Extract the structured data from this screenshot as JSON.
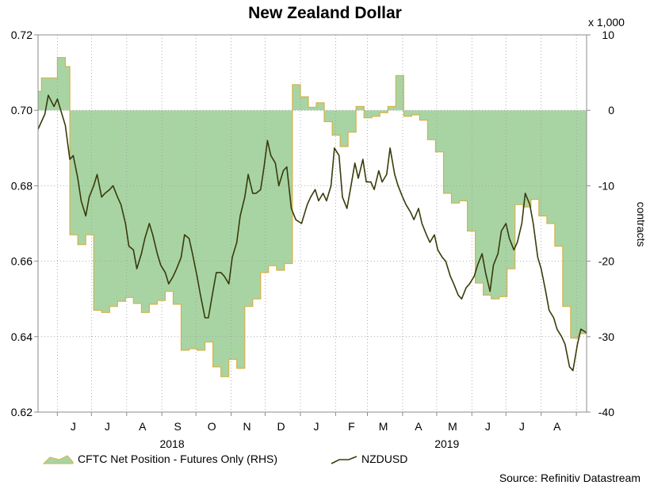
{
  "chart_data": {
    "type": "line",
    "title": "New Zealand Dollar",
    "source": "Source: Refinitiv Datastream",
    "right_axis_multiplier": "x 1,000",
    "right_axis_label": "contracts",
    "left_axis": {
      "ylim": [
        0.62,
        0.72
      ],
      "ticks": [
        "0.72",
        "0.70",
        "0.68",
        "0.66",
        "0.64",
        "0.62"
      ]
    },
    "right_axis": {
      "ylim": [
        -40,
        10
      ],
      "ticks": [
        "10",
        "0",
        "-10",
        "-20",
        "-30",
        "-40"
      ]
    },
    "x_range": [
      "2018-05-15",
      "2019-09-10"
    ],
    "month_labels": [
      {
        "label": "J",
        "date": "2018-06-15"
      },
      {
        "label": "J",
        "date": "2018-07-15"
      },
      {
        "label": "A",
        "date": "2018-08-15"
      },
      {
        "label": "S",
        "date": "2018-09-15"
      },
      {
        "label": "O",
        "date": "2018-10-15"
      },
      {
        "label": "N",
        "date": "2018-11-15"
      },
      {
        "label": "D",
        "date": "2018-12-15"
      },
      {
        "label": "J",
        "date": "2019-01-15"
      },
      {
        "label": "F",
        "date": "2019-02-15"
      },
      {
        "label": "M",
        "date": "2019-03-15"
      },
      {
        "label": "A",
        "date": "2019-04-15"
      },
      {
        "label": "M",
        "date": "2019-05-15"
      },
      {
        "label": "J",
        "date": "2019-06-15"
      },
      {
        "label": "J",
        "date": "2019-07-15"
      },
      {
        "label": "A",
        "date": "2019-08-15"
      }
    ],
    "year_labels": [
      {
        "label": "2018",
        "date": "2018-09-10"
      },
      {
        "label": "2019",
        "date": "2019-05-10"
      }
    ],
    "legend_position": "bottom",
    "grid": true,
    "series": [
      {
        "name": "CFTC Net Position - Futures Only (RHS)",
        "axis": "right",
        "style": "area",
        "color": "#a8d4a4",
        "edge_color": "#d4b24a",
        "points": [
          [
            "2018-05-15",
            2.5
          ],
          [
            "2018-05-18",
            4.3
          ],
          [
            "2018-05-25",
            4.3
          ],
          [
            "2018-06-01",
            7.0
          ],
          [
            "2018-06-08",
            5.8
          ],
          [
            "2018-06-12",
            -16.5
          ],
          [
            "2018-06-19",
            -17.8
          ],
          [
            "2018-06-26",
            -16.5
          ],
          [
            "2018-07-03",
            -26.5
          ],
          [
            "2018-07-10",
            -26.8
          ],
          [
            "2018-07-17",
            -26.0
          ],
          [
            "2018-07-24",
            -25.3
          ],
          [
            "2018-07-31",
            -24.8
          ],
          [
            "2018-08-07",
            -25.6
          ],
          [
            "2018-08-14",
            -26.8
          ],
          [
            "2018-08-21",
            -25.7
          ],
          [
            "2018-08-28",
            -25.2
          ],
          [
            "2018-09-04",
            -24.0
          ],
          [
            "2018-09-11",
            -25.7
          ],
          [
            "2018-09-18",
            -31.8
          ],
          [
            "2018-09-25",
            -31.6
          ],
          [
            "2018-10-02",
            -31.8
          ],
          [
            "2018-10-09",
            -30.7
          ],
          [
            "2018-10-16",
            -34.0
          ],
          [
            "2018-10-23",
            -35.3
          ],
          [
            "2018-10-30",
            -33.0
          ],
          [
            "2018-11-06",
            -34.2
          ],
          [
            "2018-11-13",
            -26.0
          ],
          [
            "2018-11-20",
            -25.0
          ],
          [
            "2018-11-27",
            -21.5
          ],
          [
            "2018-12-04",
            -20.6
          ],
          [
            "2018-12-11",
            -21.2
          ],
          [
            "2018-12-18",
            -20.3
          ],
          [
            "2018-12-25",
            3.4
          ],
          [
            "2019-01-01",
            1.8
          ],
          [
            "2019-01-08",
            0.4
          ],
          [
            "2019-01-15",
            1.0
          ],
          [
            "2019-01-22",
            -1.5
          ],
          [
            "2019-01-29",
            -3.3
          ],
          [
            "2019-02-05",
            -4.8
          ],
          [
            "2019-02-12",
            -2.9
          ],
          [
            "2019-02-19",
            0.5
          ],
          [
            "2019-02-26",
            -1.0
          ],
          [
            "2019-03-05",
            -0.8
          ],
          [
            "2019-03-12",
            -0.3
          ],
          [
            "2019-03-19",
            0.5
          ],
          [
            "2019-03-26",
            4.6
          ],
          [
            "2019-04-02",
            -0.8
          ],
          [
            "2019-04-09",
            -0.6
          ],
          [
            "2019-04-16",
            -1.3
          ],
          [
            "2019-04-23",
            -3.9
          ],
          [
            "2019-04-30",
            -5.5
          ],
          [
            "2019-05-07",
            -11.0
          ],
          [
            "2019-05-14",
            -12.3
          ],
          [
            "2019-05-21",
            -12.0
          ],
          [
            "2019-05-28",
            -16.0
          ],
          [
            "2019-06-04",
            -22.9
          ],
          [
            "2019-06-11",
            -24.5
          ],
          [
            "2019-06-18",
            -25.0
          ],
          [
            "2019-06-25",
            -24.7
          ],
          [
            "2019-07-02",
            -21.0
          ],
          [
            "2019-07-09",
            -12.5
          ],
          [
            "2019-07-16",
            -12.8
          ],
          [
            "2019-07-23",
            -11.8
          ],
          [
            "2019-07-30",
            -14.0
          ],
          [
            "2019-08-06",
            -15.0
          ],
          [
            "2019-08-13",
            -18.0
          ],
          [
            "2019-08-20",
            -26.0
          ],
          [
            "2019-08-27",
            -30.2
          ],
          [
            "2019-09-03",
            -29.6
          ],
          [
            "2019-09-10",
            -28.5
          ]
        ]
      },
      {
        "name": "NZDUSD",
        "axis": "left",
        "style": "line",
        "color": "#3a3a0a",
        "points": [
          [
            "2018-05-15",
            0.695
          ],
          [
            "2018-05-21",
            0.699
          ],
          [
            "2018-05-24",
            0.704
          ],
          [
            "2018-05-29",
            0.701
          ],
          [
            "2018-06-01",
            0.703
          ],
          [
            "2018-06-05",
            0.699
          ],
          [
            "2018-06-08",
            0.696
          ],
          [
            "2018-06-12",
            0.687
          ],
          [
            "2018-06-15",
            0.688
          ],
          [
            "2018-06-19",
            0.682
          ],
          [
            "2018-06-22",
            0.676
          ],
          [
            "2018-06-26",
            0.672
          ],
          [
            "2018-06-29",
            0.677
          ],
          [
            "2018-07-03",
            0.68
          ],
          [
            "2018-07-06",
            0.683
          ],
          [
            "2018-07-10",
            0.677
          ],
          [
            "2018-07-13",
            0.678
          ],
          [
            "2018-07-17",
            0.679
          ],
          [
            "2018-07-20",
            0.68
          ],
          [
            "2018-07-24",
            0.677
          ],
          [
            "2018-07-27",
            0.675
          ],
          [
            "2018-07-31",
            0.67
          ],
          [
            "2018-08-03",
            0.664
          ],
          [
            "2018-08-07",
            0.663
          ],
          [
            "2018-08-10",
            0.658
          ],
          [
            "2018-08-14",
            0.662
          ],
          [
            "2018-08-17",
            0.666
          ],
          [
            "2018-08-21",
            0.67
          ],
          [
            "2018-08-24",
            0.667
          ],
          [
            "2018-08-28",
            0.662
          ],
          [
            "2018-08-31",
            0.659
          ],
          [
            "2018-09-04",
            0.657
          ],
          [
            "2018-09-07",
            0.654
          ],
          [
            "2018-09-11",
            0.656
          ],
          [
            "2018-09-14",
            0.658
          ],
          [
            "2018-09-18",
            0.661
          ],
          [
            "2018-09-21",
            0.667
          ],
          [
            "2018-09-25",
            0.666
          ],
          [
            "2018-09-28",
            0.662
          ],
          [
            "2018-10-02",
            0.656
          ],
          [
            "2018-10-05",
            0.651
          ],
          [
            "2018-10-09",
            0.645
          ],
          [
            "2018-10-12",
            0.645
          ],
          [
            "2018-10-16",
            0.652
          ],
          [
            "2018-10-19",
            0.657
          ],
          [
            "2018-10-23",
            0.657
          ],
          [
            "2018-10-26",
            0.656
          ],
          [
            "2018-10-30",
            0.654
          ],
          [
            "2018-11-02",
            0.661
          ],
          [
            "2018-11-06",
            0.665
          ],
          [
            "2018-11-09",
            0.672
          ],
          [
            "2018-11-13",
            0.677
          ],
          [
            "2018-11-16",
            0.683
          ],
          [
            "2018-11-20",
            0.678
          ],
          [
            "2018-11-23",
            0.678
          ],
          [
            "2018-11-27",
            0.679
          ],
          [
            "2018-11-30",
            0.685
          ],
          [
            "2018-12-03",
            0.692
          ],
          [
            "2018-12-06",
            0.688
          ],
          [
            "2018-12-10",
            0.686
          ],
          [
            "2018-12-13",
            0.68
          ],
          [
            "2018-12-17",
            0.684
          ],
          [
            "2018-12-20",
            0.685
          ],
          [
            "2018-12-24",
            0.674
          ],
          [
            "2018-12-28",
            0.671
          ],
          [
            "2019-01-02",
            0.67
          ],
          [
            "2019-01-07",
            0.675
          ],
          [
            "2019-01-10",
            0.677
          ],
          [
            "2019-01-14",
            0.679
          ],
          [
            "2019-01-17",
            0.676
          ],
          [
            "2019-01-21",
            0.678
          ],
          [
            "2019-01-24",
            0.676
          ],
          [
            "2019-01-28",
            0.68
          ],
          [
            "2019-01-31",
            0.69
          ],
          [
            "2019-02-04",
            0.688
          ],
          [
            "2019-02-07",
            0.677
          ],
          [
            "2019-02-11",
            0.674
          ],
          [
            "2019-02-14",
            0.679
          ],
          [
            "2019-02-18",
            0.686
          ],
          [
            "2019-02-21",
            0.682
          ],
          [
            "2019-02-25",
            0.687
          ],
          [
            "2019-02-28",
            0.681
          ],
          [
            "2019-03-04",
            0.681
          ],
          [
            "2019-03-07",
            0.679
          ],
          [
            "2019-03-11",
            0.684
          ],
          [
            "2019-03-14",
            0.681
          ],
          [
            "2019-03-18",
            0.683
          ],
          [
            "2019-03-21",
            0.69
          ],
          [
            "2019-03-25",
            0.683
          ],
          [
            "2019-03-28",
            0.68
          ],
          [
            "2019-04-01",
            0.677
          ],
          [
            "2019-04-04",
            0.675
          ],
          [
            "2019-04-08",
            0.673
          ],
          [
            "2019-04-11",
            0.671
          ],
          [
            "2019-04-15",
            0.674
          ],
          [
            "2019-04-18",
            0.67
          ],
          [
            "2019-04-22",
            0.667
          ],
          [
            "2019-04-25",
            0.665
          ],
          [
            "2019-04-29",
            0.667
          ],
          [
            "2019-05-02",
            0.663
          ],
          [
            "2019-05-06",
            0.661
          ],
          [
            "2019-05-09",
            0.66
          ],
          [
            "2019-05-13",
            0.656
          ],
          [
            "2019-05-16",
            0.654
          ],
          [
            "2019-05-20",
            0.651
          ],
          [
            "2019-05-23",
            0.65
          ],
          [
            "2019-05-27",
            0.653
          ],
          [
            "2019-05-30",
            0.654
          ],
          [
            "2019-06-03",
            0.656
          ],
          [
            "2019-06-06",
            0.659
          ],
          [
            "2019-06-10",
            0.662
          ],
          [
            "2019-06-13",
            0.657
          ],
          [
            "2019-06-17",
            0.652
          ],
          [
            "2019-06-20",
            0.659
          ],
          [
            "2019-06-24",
            0.662
          ],
          [
            "2019-06-27",
            0.668
          ],
          [
            "2019-07-01",
            0.67
          ],
          [
            "2019-07-04",
            0.666
          ],
          [
            "2019-07-08",
            0.663
          ],
          [
            "2019-07-11",
            0.665
          ],
          [
            "2019-07-15",
            0.67
          ],
          [
            "2019-07-18",
            0.678
          ],
          [
            "2019-07-22",
            0.675
          ],
          [
            "2019-07-25",
            0.67
          ],
          [
            "2019-07-29",
            0.661
          ],
          [
            "2019-08-01",
            0.658
          ],
          [
            "2019-08-05",
            0.652
          ],
          [
            "2019-08-08",
            0.647
          ],
          [
            "2019-08-12",
            0.645
          ],
          [
            "2019-08-15",
            0.642
          ],
          [
            "2019-08-19",
            0.64
          ],
          [
            "2019-08-22",
            0.638
          ],
          [
            "2019-08-26",
            0.632
          ],
          [
            "2019-08-29",
            0.631
          ],
          [
            "2019-09-02",
            0.638
          ],
          [
            "2019-09-05",
            0.642
          ],
          [
            "2019-09-10",
            0.641
          ]
        ]
      }
    ]
  }
}
